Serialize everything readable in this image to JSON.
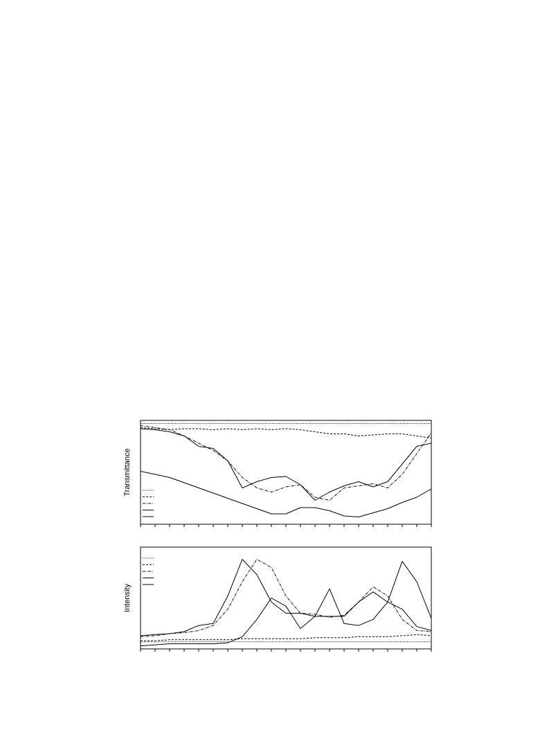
{
  "chart_data": [
    {
      "type": "line",
      "y_label": "Transmittance",
      "x": [
        0,
        1,
        2,
        3,
        4,
        5,
        6,
        7,
        8,
        9,
        10,
        11,
        12,
        13,
        14,
        15,
        16,
        17,
        18,
        19,
        20
      ],
      "xlim": [
        0,
        20
      ],
      "xticks": [
        0,
        1,
        2,
        3,
        4,
        5,
        6,
        7,
        8,
        9,
        10,
        11,
        12,
        13,
        14,
        15,
        16,
        17,
        18,
        19,
        20
      ],
      "ylim": [
        0,
        1
      ],
      "series": [
        {
          "color": "#000000",
          "style": "dotted",
          "values": [
            0.97,
            0.97,
            0.97,
            0.97,
            0.97,
            0.97,
            0.97,
            0.97,
            0.97,
            0.97,
            0.97,
            0.97,
            0.97,
            0.97,
            0.97,
            0.97,
            0.97,
            0.97,
            0.97,
            0.97,
            0.97
          ]
        },
        {
          "color": "#000000",
          "style": "dashed",
          "values": [
            0.93,
            0.92,
            0.91,
            0.92,
            0.92,
            0.91,
            0.92,
            0.91,
            0.92,
            0.91,
            0.92,
            0.91,
            0.89,
            0.87,
            0.87,
            0.85,
            0.86,
            0.87,
            0.87,
            0.85,
            0.83
          ]
        },
        {
          "color": "#000000",
          "style": "dashdot",
          "values": [
            0.95,
            0.93,
            0.91,
            0.85,
            0.78,
            0.71,
            0.61,
            0.45,
            0.35,
            0.31,
            0.36,
            0.38,
            0.26,
            0.23,
            0.35,
            0.37,
            0.39,
            0.35,
            0.48,
            0.68,
            0.88
          ]
        },
        {
          "color": "#000000",
          "style": "solid",
          "values": [
            0.92,
            0.91,
            0.89,
            0.85,
            0.75,
            0.73,
            0.61,
            0.35,
            0.41,
            0.45,
            0.46,
            0.38,
            0.23,
            0.31,
            0.37,
            0.41,
            0.36,
            0.41,
            0.58,
            0.75,
            0.78
          ]
        },
        {
          "color": "#000000",
          "style": "solid",
          "values": [
            0.51,
            0.48,
            0.45,
            0.4,
            0.35,
            0.3,
            0.25,
            0.2,
            0.15,
            0.1,
            0.1,
            0.16,
            0.16,
            0.13,
            0.08,
            0.07,
            0.11,
            0.15,
            0.21,
            0.26,
            0.34
          ]
        }
      ]
    },
    {
      "type": "line",
      "y_label": "Intensity",
      "x": [
        0,
        1,
        2,
        3,
        4,
        5,
        6,
        7,
        8,
        9,
        10,
        11,
        12,
        13,
        14,
        15,
        16,
        17,
        18,
        19,
        20
      ],
      "xlim": [
        0,
        20
      ],
      "xticks": [
        0,
        1,
        2,
        3,
        4,
        5,
        6,
        7,
        8,
        9,
        10,
        11,
        12,
        13,
        14,
        15,
        16,
        17,
        18,
        19,
        20
      ],
      "ylim": [
        0,
        1
      ],
      "series": [
        {
          "color": "#000000",
          "style": "dotted",
          "values": [
            0.07,
            0.07,
            0.07,
            0.07,
            0.07,
            0.07,
            0.07,
            0.07,
            0.07,
            0.07,
            0.07,
            0.07,
            0.07,
            0.07,
            0.07,
            0.07,
            0.07,
            0.07,
            0.07,
            0.07,
            0.07
          ]
        },
        {
          "color": "#000000",
          "style": "dashed",
          "values": [
            0.08,
            0.08,
            0.09,
            0.09,
            0.09,
            0.09,
            0.09,
            0.1,
            0.1,
            0.1,
            0.1,
            0.1,
            0.11,
            0.11,
            0.11,
            0.12,
            0.12,
            0.12,
            0.13,
            0.14,
            0.13
          ]
        },
        {
          "color": "#000000",
          "style": "dashdot",
          "values": [
            0.12,
            0.13,
            0.15,
            0.16,
            0.18,
            0.23,
            0.39,
            0.66,
            0.88,
            0.8,
            0.52,
            0.35,
            0.34,
            0.31,
            0.33,
            0.46,
            0.61,
            0.52,
            0.29,
            0.18,
            0.17
          ]
        },
        {
          "color": "#000000",
          "style": "solid",
          "values": [
            0.13,
            0.14,
            0.15,
            0.17,
            0.23,
            0.25,
            0.52,
            0.88,
            0.73,
            0.46,
            0.35,
            0.35,
            0.32,
            0.32,
            0.32,
            0.46,
            0.56,
            0.46,
            0.39,
            0.22,
            0.18
          ]
        },
        {
          "color": "#000000",
          "style": "solid",
          "values": [
            0.03,
            0.04,
            0.05,
            0.05,
            0.05,
            0.05,
            0.06,
            0.12,
            0.29,
            0.5,
            0.42,
            0.2,
            0.32,
            0.59,
            0.25,
            0.23,
            0.29,
            0.46,
            0.86,
            0.66,
            0.3
          ]
        }
      ]
    }
  ]
}
